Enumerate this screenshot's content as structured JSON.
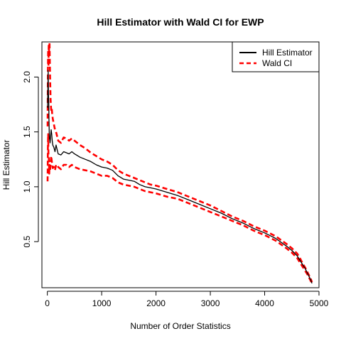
{
  "chart_data": {
    "type": "line",
    "title": "Hill Estimator with Wald CI for EWP",
    "xlabel": "Number of Order Statistics",
    "ylabel": "Hill Estimator",
    "xlim": [
      -100,
      5000
    ],
    "ylim": [
      0.08,
      2.32
    ],
    "xticks": [
      0,
      1000,
      2000,
      3000,
      4000,
      5000
    ],
    "yticks": [
      0.5,
      1.0,
      1.5,
      2.0
    ],
    "ytick_labels": [
      "0.5",
      "1.0",
      "1.5",
      "2.0"
    ],
    "legend": {
      "position": "top-right",
      "entries": [
        "Hill Estimator",
        "Wald CI"
      ]
    },
    "series": [
      {
        "name": "Hill Estimator",
        "color": "#000000",
        "style": "solid",
        "x": [
          5,
          10,
          15,
          20,
          25,
          30,
          35,
          40,
          50,
          60,
          70,
          80,
          90,
          100,
          120,
          140,
          160,
          180,
          200,
          250,
          300,
          350,
          400,
          450,
          500,
          600,
          700,
          800,
          900,
          1000,
          1100,
          1200,
          1300,
          1400,
          1500,
          1600,
          1700,
          1800,
          1900,
          2000,
          2200,
          2400,
          2600,
          2800,
          3000,
          3200,
          3400,
          3600,
          3800,
          4000,
          4200,
          4400,
          4500,
          4600,
          4650,
          4700,
          4750,
          4800,
          4850,
          4870
        ],
        "y": [
          1.72,
          1.9,
          2.06,
          1.85,
          1.78,
          1.62,
          1.5,
          1.44,
          1.4,
          1.46,
          1.52,
          1.48,
          1.42,
          1.38,
          1.36,
          1.32,
          1.38,
          1.34,
          1.3,
          1.29,
          1.32,
          1.31,
          1.3,
          1.32,
          1.3,
          1.27,
          1.25,
          1.23,
          1.2,
          1.18,
          1.17,
          1.15,
          1.1,
          1.07,
          1.06,
          1.05,
          1.02,
          1.0,
          0.99,
          0.98,
          0.95,
          0.92,
          0.88,
          0.84,
          0.8,
          0.76,
          0.71,
          0.67,
          0.62,
          0.58,
          0.53,
          0.46,
          0.42,
          0.37,
          0.33,
          0.29,
          0.25,
          0.2,
          0.15,
          0.12
        ]
      },
      {
        "name": "Wald CI",
        "color": "#ff0000",
        "style": "dashed",
        "upper_x": [
          5,
          10,
          15,
          20,
          25,
          30,
          35,
          40,
          50,
          60,
          70,
          80,
          90,
          100,
          120,
          140,
          160,
          180,
          200,
          250,
          300,
          350,
          400,
          450,
          500,
          600,
          700,
          800,
          900,
          1000,
          1100,
          1200,
          1300,
          1400,
          1500,
          1600,
          1700,
          1800,
          1900,
          2000,
          2200,
          2400,
          2600,
          2800,
          3000,
          3200,
          3400,
          3600,
          3800,
          4000,
          4200,
          4400,
          4500,
          4600,
          4650,
          4700,
          4750,
          4800,
          4850,
          4870
        ],
        "upper_y": [
          1.55,
          2.05,
          2.25,
          2.1,
          2.3,
          2.28,
          2.2,
          2.32,
          2.0,
          1.8,
          1.7,
          1.72,
          1.66,
          1.62,
          1.57,
          1.52,
          1.5,
          1.46,
          1.42,
          1.4,
          1.45,
          1.44,
          1.42,
          1.44,
          1.42,
          1.38,
          1.35,
          1.31,
          1.28,
          1.25,
          1.23,
          1.2,
          1.15,
          1.12,
          1.1,
          1.08,
          1.06,
          1.04,
          1.02,
          1.01,
          0.98,
          0.95,
          0.91,
          0.87,
          0.83,
          0.78,
          0.73,
          0.69,
          0.64,
          0.6,
          0.55,
          0.48,
          0.44,
          0.39,
          0.35,
          0.3,
          0.26,
          0.21,
          0.16,
          0.13
        ],
        "lower_x": [
          5,
          10,
          15,
          20,
          25,
          30,
          35,
          40,
          50,
          60,
          70,
          80,
          90,
          100,
          120,
          140,
          160,
          180,
          200,
          250,
          300,
          350,
          400,
          450,
          500,
          600,
          700,
          800,
          900,
          1000,
          1100,
          1200,
          1300,
          1400,
          1500,
          1600,
          1700,
          1800,
          1900,
          2000,
          2200,
          2400,
          2600,
          2800,
          3000,
          3200,
          3400,
          3600,
          3800,
          4000,
          4200,
          4400,
          4500,
          4600,
          4650,
          4700,
          4750,
          4800,
          4850,
          4870
        ],
        "lower_y": [
          1.05,
          1.35,
          1.48,
          1.3,
          1.28,
          1.22,
          1.12,
          1.2,
          1.15,
          1.2,
          1.28,
          1.24,
          1.2,
          1.17,
          1.18,
          1.15,
          1.2,
          1.2,
          1.18,
          1.16,
          1.2,
          1.2,
          1.18,
          1.2,
          1.18,
          1.16,
          1.15,
          1.14,
          1.12,
          1.1,
          1.1,
          1.08,
          1.04,
          1.02,
          1.01,
          1.0,
          0.98,
          0.96,
          0.95,
          0.94,
          0.91,
          0.89,
          0.85,
          0.81,
          0.77,
          0.73,
          0.69,
          0.65,
          0.6,
          0.56,
          0.51,
          0.44,
          0.4,
          0.35,
          0.31,
          0.27,
          0.23,
          0.19,
          0.14,
          0.11
        ]
      }
    ]
  }
}
